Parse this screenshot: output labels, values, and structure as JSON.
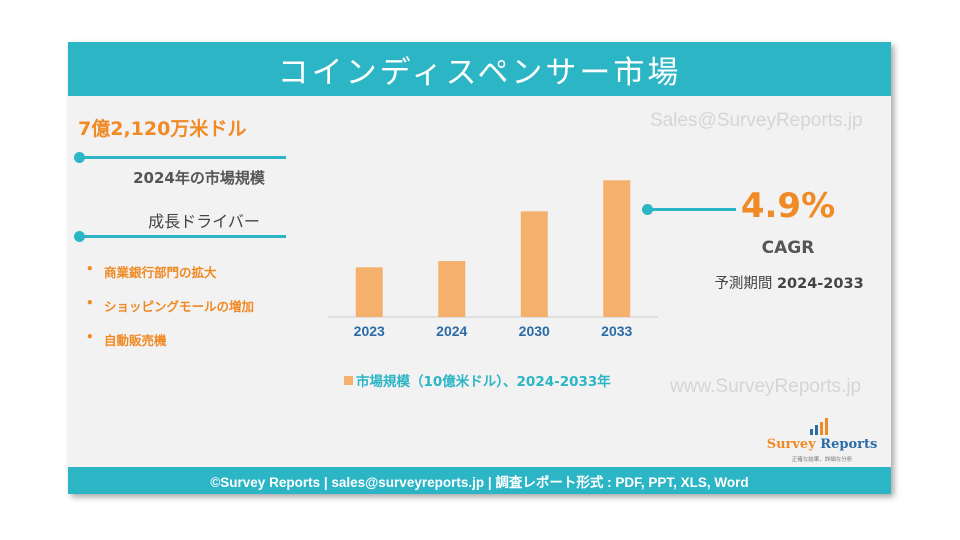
{
  "header": {
    "title": "コインディスペンサー市場"
  },
  "left_panel": {
    "market_size": "7億2,120万米ドル",
    "market_size_label": "2024年の市場規模",
    "drivers_heading": "成長ドライバー",
    "drivers": [
      {
        "bullet": "•",
        "label": "商業銀行部門の拡大"
      },
      {
        "bullet": "•",
        "label": "ショッピングモールの増加"
      },
      {
        "bullet": "•",
        "label": "自動販売機"
      }
    ]
  },
  "watermarks": {
    "email": "Sales@SurveyReports.jp",
    "site": "www.SurveyReports.jp"
  },
  "chart_data": {
    "type": "bar",
    "categories": [
      "2023",
      "2024",
      "2030",
      "2033"
    ],
    "series": [
      {
        "name": "市場規模（10億米ドル）、2024-2033年",
        "values": [
          0.69,
          0.72,
          0.96,
          1.11
        ]
      }
    ],
    "ylim": [
      0.45,
      1.15
    ],
    "grid": false,
    "legend_position": "bottom",
    "bar_color": "#f5b06e"
  },
  "right_panel": {
    "cagr_value": "4.9%",
    "cagr_label": "CAGR",
    "forecast_label": "予測期間",
    "forecast_years": "2024-2033"
  },
  "logo": {
    "name_part1": "Survey",
    "name_part2": "Reports",
    "tagline": "正確な結果、詳細な分析"
  },
  "footer": {
    "text": "©Survey Reports | sales@surveyreports.jp |  調査レポート形式 : PDF, PPT, XLS, Word"
  },
  "colors": {
    "accent_teal": "#2bb5c5",
    "accent_orange": "#f08a24",
    "bar_orange": "#f5b06e",
    "panel_background": "#f2f2f2"
  }
}
